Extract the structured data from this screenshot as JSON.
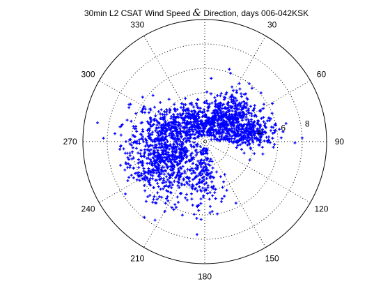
{
  "chart_data": {
    "type": "scatter",
    "subtype": "polar",
    "title_before": "30min L2 CSAT Wind Speed ",
    "title_amp": "&",
    "title_after": " Direction, days 006-042KSK",
    "angle_ticks": [
      {
        "deg": 0,
        "label": ""
      },
      {
        "deg": 30,
        "label": "30"
      },
      {
        "deg": 60,
        "label": "60"
      },
      {
        "deg": 90,
        "label": "90"
      },
      {
        "deg": 120,
        "label": "120"
      },
      {
        "deg": 150,
        "label": "150"
      },
      {
        "deg": 180,
        "label": "180"
      },
      {
        "deg": 210,
        "label": "210"
      },
      {
        "deg": 240,
        "label": "240"
      },
      {
        "deg": 270,
        "label": "270"
      },
      {
        "deg": 300,
        "label": "300"
      },
      {
        "deg": 330,
        "label": "330"
      }
    ],
    "radial_ticks": [
      2,
      4,
      6,
      8
    ],
    "radial_labels": [
      "",
      "4",
      "6",
      "8"
    ],
    "rmax": 10,
    "grid": true,
    "marker_color": "#0000ff",
    "clusters": [
      {
        "dir_deg": 248,
        "speed": 4.0,
        "dir_spread_deg": 24,
        "speed_spread": 1.45,
        "count": 700
      },
      {
        "dir_deg": 45,
        "speed": 3.1,
        "dir_spread_deg": 16,
        "speed_spread": 1.15,
        "count": 420
      },
      {
        "dir_deg": 80,
        "speed": 3.6,
        "dir_spread_deg": 9,
        "speed_spread": 1.15,
        "count": 260
      },
      {
        "dir_deg": 180,
        "speed": 2.8,
        "dir_spread_deg": 13,
        "speed_spread": 1.35,
        "count": 150
      },
      {
        "dir_deg": 335,
        "speed": 2.0,
        "dir_spread_deg": 15,
        "speed_spread": 0.8,
        "count": 200
      },
      {
        "dir_deg": 292,
        "speed": 3.2,
        "dir_spread_deg": 12,
        "speed_spread": 1.1,
        "count": 180
      },
      {
        "dir_deg": 15,
        "speed": 2.0,
        "dir_spread_deg": 10,
        "speed_spread": 0.7,
        "count": 90
      }
    ]
  }
}
